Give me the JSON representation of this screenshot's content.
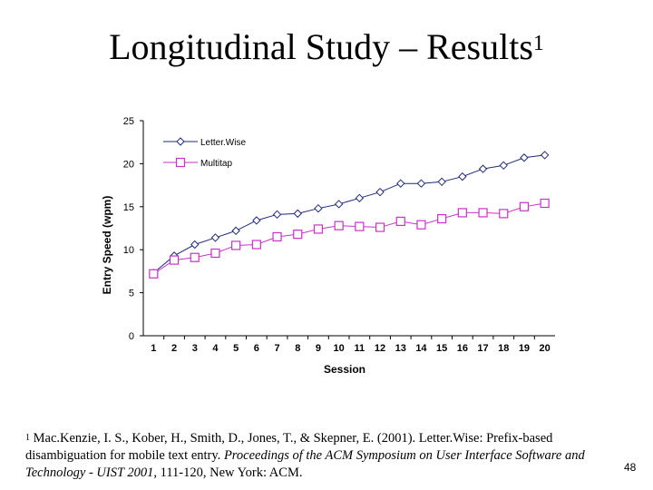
{
  "slide": {
    "title": "Longitudinal Study – Results",
    "title_superscript": "1",
    "page_number": "48"
  },
  "footnote": {
    "marker": "1",
    "part1": "Mac.Kenzie, I. S., Kober, H., Smith, D., Jones, T., & Skepner, E. (2001). Letter.Wise: Prefix-based disambiguation for mobile text entry.",
    "part2": "Proceedings of the ACM Symposium on User Interface Software and Technology - UIST 2001",
    "part3": ", 111-120, New York: ACM."
  },
  "chart_data": {
    "type": "line",
    "title": "",
    "xlabel": "Session",
    "ylabel": "Entry Speed (wpm)",
    "x": [
      "1",
      "2",
      "3",
      "4",
      "5",
      "6",
      "7",
      "8",
      "9",
      "10",
      "11",
      "12",
      "13",
      "14",
      "15",
      "16",
      "17",
      "18",
      "19",
      "20"
    ],
    "ylim": [
      0,
      25
    ],
    "yticks": [
      "0",
      "5",
      "10",
      "15",
      "20",
      "25"
    ],
    "grid": false,
    "legend": "top-left",
    "series": [
      {
        "name": "Letter.Wise",
        "color": "#1f2a7a",
        "marker": "diamond",
        "values": [
          7.3,
          9.3,
          10.6,
          11.4,
          12.2,
          13.4,
          14.1,
          14.2,
          14.8,
          15.3,
          16.0,
          16.7,
          17.7,
          17.7,
          17.9,
          18.5,
          19.4,
          19.8,
          20.7,
          21.0
        ]
      },
      {
        "name": "Multitap",
        "color": "#c832c8",
        "marker": "square",
        "values": [
          7.2,
          8.8,
          9.1,
          9.6,
          10.5,
          10.6,
          11.5,
          11.8,
          12.4,
          12.8,
          12.7,
          12.6,
          13.3,
          12.9,
          13.6,
          14.3,
          14.3,
          14.2,
          15.0,
          15.4
        ]
      }
    ]
  }
}
